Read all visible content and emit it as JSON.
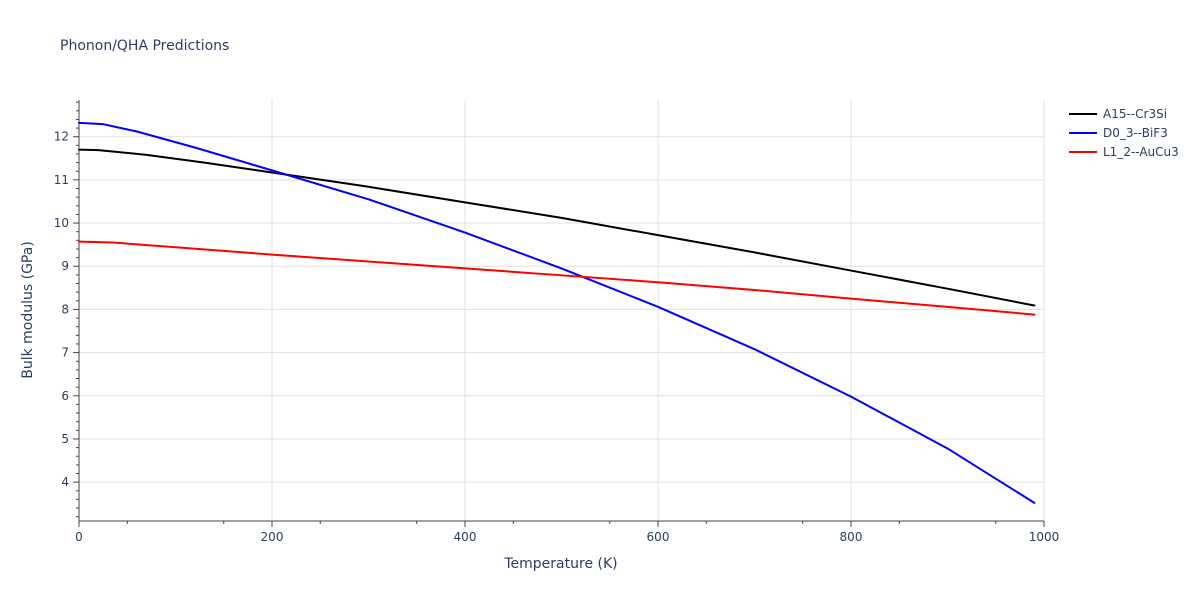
{
  "chart_data": {
    "type": "line",
    "title": "Phonon/QHA Predictions",
    "xlabel": "Temperature (K)",
    "ylabel": "Bulk modulus (GPa)",
    "xlim": [
      0,
      1000
    ],
    "ylim": [
      3.1,
      12.85
    ],
    "x_ticks": [
      0,
      200,
      400,
      600,
      800,
      1000
    ],
    "y_ticks": [
      4,
      5,
      6,
      7,
      8,
      9,
      10,
      11,
      12
    ],
    "grid": true,
    "legend_position": "top-right",
    "series": [
      {
        "name": "A15--Cr3Si",
        "color": "#000000",
        "x": [
          0,
          20,
          70,
          130,
          200,
          300,
          400,
          500,
          600,
          700,
          800,
          900,
          990
        ],
        "y": [
          11.7,
          11.69,
          11.58,
          11.4,
          11.17,
          10.84,
          10.48,
          10.12,
          9.72,
          9.32,
          8.9,
          8.48,
          8.09
        ]
      },
      {
        "name": "D0_3--BiF3",
        "color": "#0000ff",
        "x": [
          0,
          25,
          60,
          120,
          200,
          300,
          400,
          500,
          600,
          700,
          800,
          900,
          990
        ],
        "y": [
          12.32,
          12.29,
          12.12,
          11.75,
          11.22,
          10.55,
          9.78,
          8.95,
          8.06,
          7.08,
          5.98,
          4.78,
          3.52
        ]
      },
      {
        "name": "L1_2--AuCu3",
        "color": "#ff0000",
        "x": [
          0,
          35,
          100,
          200,
          300,
          400,
          500,
          600,
          700,
          800,
          900,
          990
        ],
        "y": [
          9.57,
          9.55,
          9.44,
          9.27,
          9.11,
          8.95,
          8.79,
          8.63,
          8.45,
          8.25,
          8.06,
          7.88
        ]
      }
    ]
  }
}
